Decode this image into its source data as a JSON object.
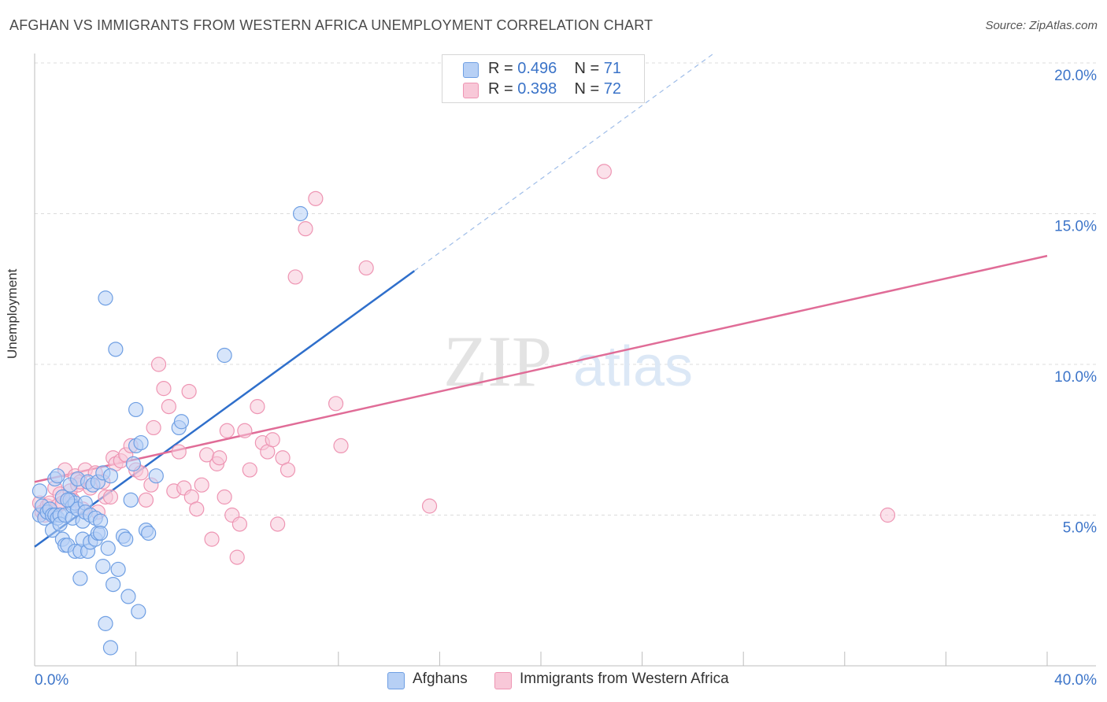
{
  "title": "AFGHAN VS IMMIGRANTS FROM WESTERN AFRICA UNEMPLOYMENT CORRELATION CHART",
  "source": "Source: ZipAtlas.com",
  "watermark": {
    "zip": "ZIP",
    "atlas": "atlas"
  },
  "legend": {
    "items": [
      {
        "r_label": "R =",
        "r_value": "0.496",
        "n_label": "N =",
        "n_value": "71",
        "color": "#6f9fe3"
      },
      {
        "r_label": "R =",
        "r_value": "0.398",
        "n_label": "N =",
        "n_value": "72",
        "color": "#f09bb7"
      }
    ]
  },
  "colors": {
    "blue_fill": "#b7d0f5",
    "blue_stroke": "#6f9fe3",
    "blue_line": "#2f6fcb",
    "pink_fill": "#f8c8d8",
    "pink_stroke": "#ee95b3",
    "pink_line": "#e06c97",
    "axis_text": "#3d75c9"
  },
  "chart_data": {
    "type": "scatter",
    "title": "AFGHAN VS IMMIGRANTS FROM WESTERN AFRICA UNEMPLOYMENT CORRELATION CHART",
    "xlabel": "",
    "ylabel": "Unemployment",
    "xlim": [
      0,
      40
    ],
    "ylim": [
      0,
      20.5
    ],
    "x_tick_labels": [
      "0.0%",
      "40.0%"
    ],
    "y_ticks": [
      5,
      10,
      15,
      20
    ],
    "y_tick_labels": [
      "5.0%",
      "10.0%",
      "15.0%",
      "20.0%"
    ],
    "grid": true,
    "legend_position": "top-center",
    "series": [
      {
        "name": "Afghans",
        "points": [
          [
            0.2,
            5.8
          ],
          [
            0.2,
            5.0
          ],
          [
            0.3,
            5.3
          ],
          [
            0.4,
            4.9
          ],
          [
            0.5,
            5.1
          ],
          [
            0.6,
            5.2
          ],
          [
            0.7,
            5.0
          ],
          [
            0.7,
            4.5
          ],
          [
            0.8,
            6.2
          ],
          [
            0.8,
            5.0
          ],
          [
            0.9,
            4.9
          ],
          [
            0.9,
            6.3
          ],
          [
            1.0,
            5.0
          ],
          [
            1.0,
            4.7
          ],
          [
            1.1,
            4.2
          ],
          [
            1.1,
            5.6
          ],
          [
            1.2,
            5.0
          ],
          [
            1.2,
            4.0
          ],
          [
            1.3,
            4.0
          ],
          [
            1.4,
            5.5
          ],
          [
            1.4,
            6.0
          ],
          [
            1.5,
            4.9
          ],
          [
            1.5,
            5.3
          ],
          [
            1.6,
            5.4
          ],
          [
            1.6,
            3.8
          ],
          [
            1.7,
            5.2
          ],
          [
            1.7,
            6.2
          ],
          [
            1.8,
            3.8
          ],
          [
            1.8,
            2.9
          ],
          [
            1.9,
            4.8
          ],
          [
            1.9,
            4.2
          ],
          [
            2.0,
            5.4
          ],
          [
            2.0,
            5.1
          ],
          [
            2.1,
            6.1
          ],
          [
            2.1,
            3.8
          ],
          [
            2.2,
            5.0
          ],
          [
            2.2,
            4.1
          ],
          [
            2.3,
            6.0
          ],
          [
            2.4,
            4.2
          ],
          [
            2.4,
            4.9
          ],
          [
            2.5,
            4.4
          ],
          [
            2.5,
            6.1
          ],
          [
            2.6,
            4.8
          ],
          [
            2.6,
            4.4
          ],
          [
            2.7,
            6.4
          ],
          [
            2.7,
            3.3
          ],
          [
            2.8,
            12.2
          ],
          [
            2.8,
            1.4
          ],
          [
            2.9,
            3.9
          ],
          [
            3.0,
            6.3
          ],
          [
            3.0,
            0.6
          ],
          [
            3.1,
            2.7
          ],
          [
            3.2,
            10.5
          ],
          [
            3.3,
            3.2
          ],
          [
            3.5,
            4.3
          ],
          [
            3.6,
            4.2
          ],
          [
            3.7,
            2.3
          ],
          [
            3.8,
            5.5
          ],
          [
            3.9,
            6.7
          ],
          [
            4.0,
            8.5
          ],
          [
            4.0,
            7.3
          ],
          [
            4.1,
            1.8
          ],
          [
            4.2,
            7.4
          ],
          [
            4.4,
            4.5
          ],
          [
            4.5,
            4.4
          ],
          [
            4.8,
            6.3
          ],
          [
            5.7,
            7.9
          ],
          [
            5.8,
            8.1
          ],
          [
            7.5,
            10.3
          ],
          [
            10.5,
            15.0
          ],
          [
            1.3,
            5.5
          ]
        ]
      },
      {
        "name": "Immigrants from Western Africa",
        "points": [
          [
            0.2,
            5.4
          ],
          [
            0.3,
            5.1
          ],
          [
            0.4,
            5.0
          ],
          [
            0.5,
            5.3
          ],
          [
            0.6,
            5.4
          ],
          [
            0.7,
            5.1
          ],
          [
            0.8,
            5.9
          ],
          [
            0.9,
            5.3
          ],
          [
            1.0,
            5.7
          ],
          [
            1.1,
            5.4
          ],
          [
            1.2,
            6.5
          ],
          [
            1.3,
            5.5
          ],
          [
            1.4,
            5.8
          ],
          [
            1.5,
            5.5
          ],
          [
            1.6,
            6.3
          ],
          [
            1.7,
            6.0
          ],
          [
            1.8,
            6.1
          ],
          [
            1.9,
            5.2
          ],
          [
            2.0,
            6.5
          ],
          [
            2.2,
            5.9
          ],
          [
            2.4,
            6.4
          ],
          [
            2.5,
            5.1
          ],
          [
            2.7,
            6.1
          ],
          [
            2.8,
            5.6
          ],
          [
            3.0,
            5.6
          ],
          [
            3.1,
            6.9
          ],
          [
            3.2,
            6.7
          ],
          [
            3.4,
            6.8
          ],
          [
            3.6,
            7.0
          ],
          [
            3.8,
            7.3
          ],
          [
            4.0,
            6.5
          ],
          [
            4.2,
            6.4
          ],
          [
            4.4,
            5.5
          ],
          [
            4.6,
            6.0
          ],
          [
            4.7,
            7.9
          ],
          [
            4.9,
            10.0
          ],
          [
            5.1,
            9.2
          ],
          [
            5.3,
            8.6
          ],
          [
            5.5,
            5.8
          ],
          [
            5.7,
            7.1
          ],
          [
            5.9,
            5.9
          ],
          [
            6.1,
            9.1
          ],
          [
            6.2,
            5.6
          ],
          [
            6.4,
            5.2
          ],
          [
            6.6,
            6.0
          ],
          [
            6.8,
            7.0
          ],
          [
            7.0,
            4.2
          ],
          [
            7.2,
            6.7
          ],
          [
            7.3,
            6.9
          ],
          [
            7.5,
            5.6
          ],
          [
            7.6,
            7.8
          ],
          [
            7.8,
            5.0
          ],
          [
            8.0,
            3.6
          ],
          [
            8.1,
            4.7
          ],
          [
            8.3,
            7.8
          ],
          [
            8.5,
            6.5
          ],
          [
            8.8,
            8.6
          ],
          [
            9.0,
            7.4
          ],
          [
            9.2,
            7.1
          ],
          [
            9.4,
            7.5
          ],
          [
            9.6,
            4.7
          ],
          [
            9.8,
            6.9
          ],
          [
            10.0,
            6.5
          ],
          [
            10.3,
            12.9
          ],
          [
            10.7,
            14.5
          ],
          [
            11.1,
            15.5
          ],
          [
            11.9,
            8.7
          ],
          [
            12.1,
            7.3
          ],
          [
            13.1,
            13.2
          ],
          [
            15.6,
            5.3
          ],
          [
            22.5,
            16.4
          ],
          [
            33.7,
            5.0
          ]
        ]
      }
    ],
    "trendlines": [
      {
        "series": "Afghans",
        "x": [
          0,
          15
        ],
        "y": [
          3.95,
          13.1
        ],
        "dashed_extension_to_x": 26.8
      },
      {
        "series": "Immigrants from Western Africa",
        "x": [
          0,
          40
        ],
        "y": [
          6.1,
          13.6
        ]
      }
    ]
  }
}
